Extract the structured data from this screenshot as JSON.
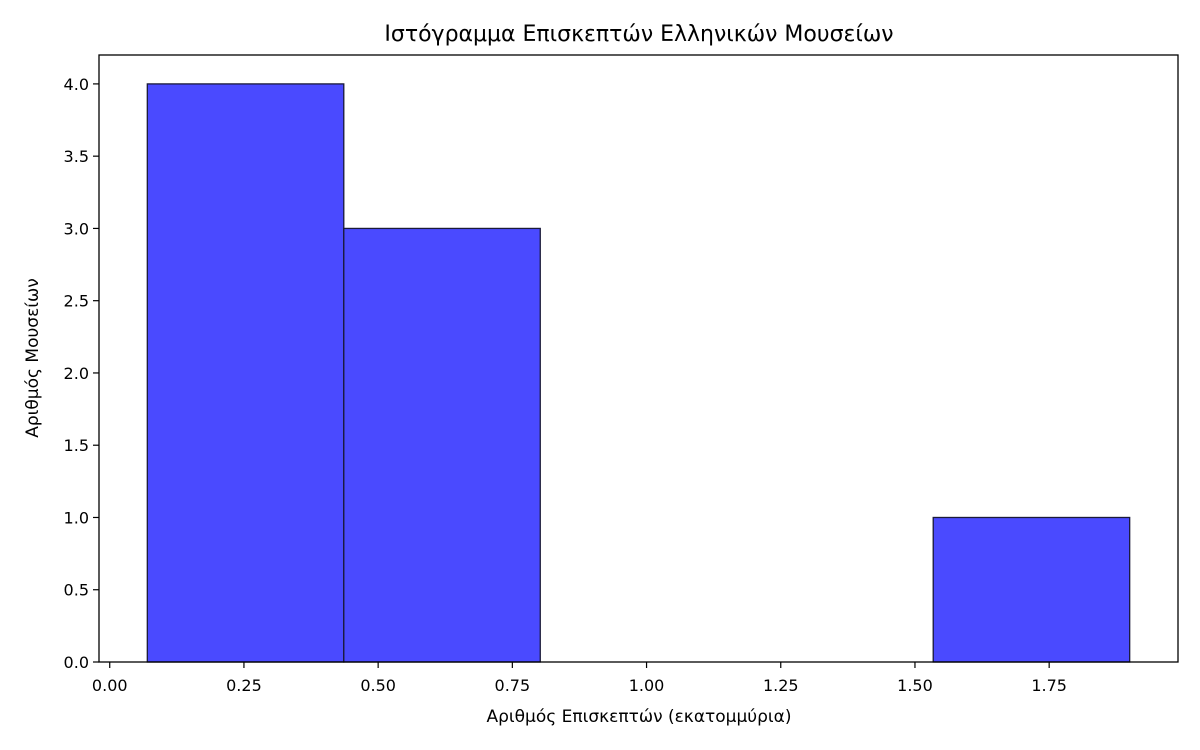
{
  "chart_data": {
    "type": "bar",
    "title": "Ιστόγραμμα Επισκεπτών Ελληνικών Μουσείων",
    "xlabel": "Αριθμός Επισκεπτών (εκατομμύρια)",
    "ylabel": "Αριθμός Μουσείων",
    "xlim": [
      -0.02,
      1.99
    ],
    "ylim": [
      0,
      4.2
    ],
    "x_ticks": [
      0.0,
      0.25,
      0.5,
      0.75,
      1.0,
      1.25,
      1.5,
      1.75
    ],
    "x_tick_labels": [
      "0.00",
      "0.25",
      "0.50",
      "0.75",
      "1.00",
      "1.25",
      "1.50",
      "1.75"
    ],
    "y_ticks": [
      0.0,
      0.5,
      1.0,
      1.5,
      2.0,
      2.5,
      3.0,
      3.5,
      4.0
    ],
    "y_tick_labels": [
      "0.0",
      "0.5",
      "1.0",
      "1.5",
      "2.0",
      "2.5",
      "3.0",
      "3.5",
      "4.0"
    ],
    "bins": [
      {
        "x_start": 0.07,
        "x_end": 0.436,
        "count": 4
      },
      {
        "x_start": 0.436,
        "x_end": 0.802,
        "count": 3
      },
      {
        "x_start": 0.802,
        "x_end": 1.168,
        "count": 0
      },
      {
        "x_start": 1.168,
        "x_end": 1.534,
        "count": 0
      },
      {
        "x_start": 1.534,
        "x_end": 1.9,
        "count": 1
      }
    ],
    "bar_color": "#4a4aff",
    "edge_color": "#1a1a3a",
    "grid": false,
    "legend": "none"
  }
}
